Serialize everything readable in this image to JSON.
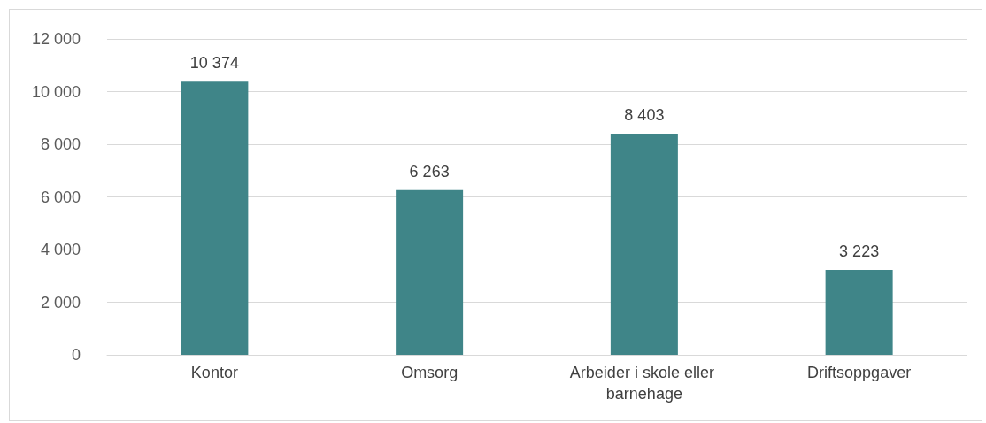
{
  "chart_data": {
    "type": "bar",
    "categories": [
      "Kontor",
      "Omsorg",
      "Arbeider i skole eller barnehage",
      "Driftsoppgaver"
    ],
    "values": [
      10374,
      6263,
      8403,
      3223
    ],
    "color": "#3f8588",
    "ylim": [
      0,
      12000
    ],
    "yticks": [
      {
        "value": 0,
        "label": "0"
      },
      {
        "value": 2000,
        "label": "2 000"
      },
      {
        "value": 4000,
        "label": "4 000"
      },
      {
        "value": 6000,
        "label": "6 000"
      },
      {
        "value": 8000,
        "label": "8 000"
      },
      {
        "value": 10000,
        "label": "10 000"
      },
      {
        "value": 12000,
        "label": "12 000"
      }
    ],
    "grid": "y",
    "data_labels": true
  }
}
